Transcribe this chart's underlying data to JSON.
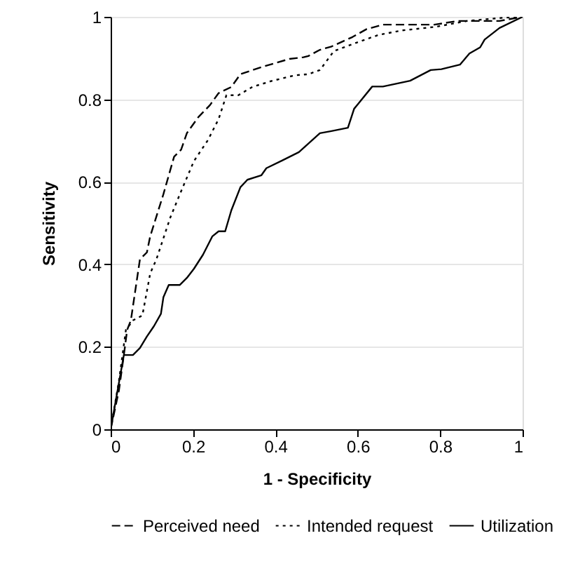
{
  "chart_data": {
    "type": "line",
    "xlabel": "1 - Specificity",
    "ylabel": "Sensitivity",
    "xlim": [
      0,
      1
    ],
    "ylim": [
      0,
      1
    ],
    "xticks": [
      0,
      0.2,
      0.4,
      0.6,
      0.8,
      1
    ],
    "yticks": [
      0,
      0.2,
      0.4,
      0.6,
      0.8,
      1
    ],
    "grid": "y",
    "legend": "bottom",
    "marker": "none",
    "series": [
      {
        "name": "Perceived need",
        "color": "#000000",
        "line_style": "dashed",
        "x": [
          0,
          0.02,
          0.032,
          0.04,
          0.049,
          0.071,
          0.088,
          0.096,
          0.128,
          0.154,
          0.171,
          0.185,
          0.213,
          0.241,
          0.262,
          0.293,
          0.315,
          0.366,
          0.434,
          0.468,
          0.48,
          0.508,
          0.536,
          0.587,
          0.621,
          0.661,
          0.786,
          0.842,
          0.944,
          1
        ],
        "values": [
          0,
          0.094,
          0.18,
          0.241,
          0.264,
          0.412,
          0.429,
          0.468,
          0.57,
          0.661,
          0.678,
          0.718,
          0.757,
          0.786,
          0.815,
          0.83,
          0.861,
          0.878,
          0.898,
          0.902,
          0.905,
          0.92,
          0.928,
          0.951,
          0.97,
          0.981,
          0.981,
          0.99,
          0.99,
          1
        ]
      },
      {
        "name": "Intended request",
        "color": "#000000",
        "line_style": "dotted",
        "x": [
          0,
          0.02,
          0.037,
          0.054,
          0.077,
          0.096,
          0.111,
          0.145,
          0.168,
          0.202,
          0.236,
          0.262,
          0.281,
          0.31,
          0.344,
          0.389,
          0.446,
          0.48,
          0.508,
          0.542,
          0.604,
          0.65,
          0.707,
          0.791,
          0.865,
          0.956,
          1
        ],
        "values": [
          0,
          0.117,
          0.241,
          0.264,
          0.276,
          0.378,
          0.412,
          0.514,
          0.57,
          0.65,
          0.701,
          0.752,
          0.81,
          0.81,
          0.83,
          0.844,
          0.858,
          0.861,
          0.871,
          0.917,
          0.94,
          0.956,
          0.967,
          0.976,
          0.99,
          0.998,
          1
        ]
      },
      {
        "name": "Utilization",
        "color": "#000000",
        "line_style": "solid",
        "x": [
          0,
          0.032,
          0.054,
          0.071,
          0.088,
          0.105,
          0.122,
          0.128,
          0.141,
          0.168,
          0.185,
          0.202,
          0.224,
          0.247,
          0.262,
          0.278,
          0.293,
          0.315,
          0.332,
          0.366,
          0.378,
          0.417,
          0.457,
          0.508,
          0.536,
          0.576,
          0.591,
          0.635,
          0.661,
          0.727,
          0.777,
          0.803,
          0.848,
          0.871,
          0.897,
          0.908,
          0.944,
          1
        ],
        "values": [
          0,
          0.18,
          0.18,
          0.197,
          0.225,
          0.25,
          0.28,
          0.32,
          0.35,
          0.35,
          0.367,
          0.389,
          0.423,
          0.468,
          0.48,
          0.48,
          0.531,
          0.587,
          0.605,
          0.616,
          0.633,
          0.652,
          0.672,
          0.718,
          0.723,
          0.731,
          0.777,
          0.831,
          0.831,
          0.845,
          0.871,
          0.873,
          0.884,
          0.911,
          0.926,
          0.945,
          0.973,
          1
        ]
      }
    ]
  }
}
